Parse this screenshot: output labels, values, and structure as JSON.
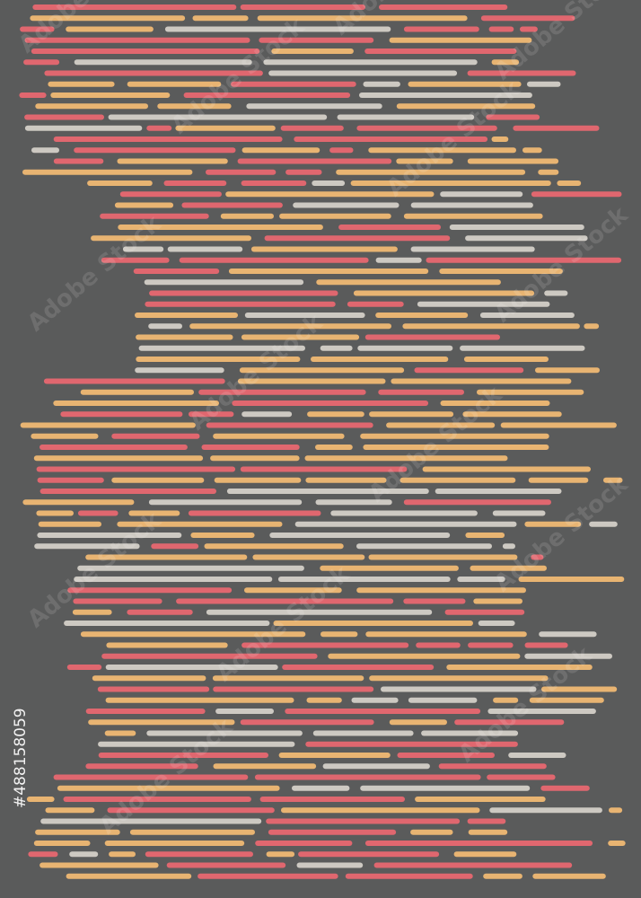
{
  "stock_id": "#488158059",
  "watermark": "Adobe Stock"
}
